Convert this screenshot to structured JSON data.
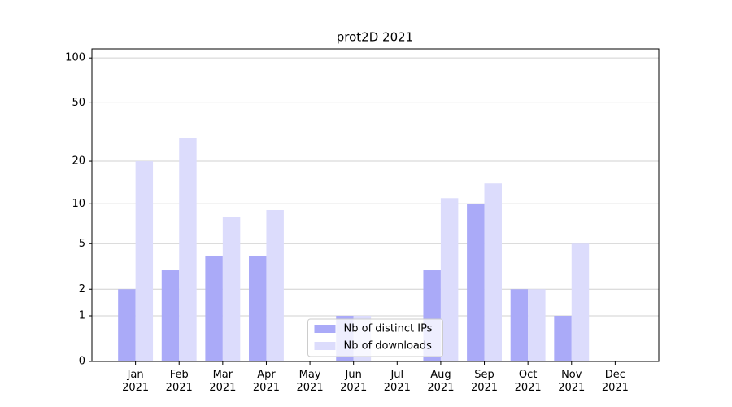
{
  "chart_data": {
    "type": "bar",
    "title": "prot2D 2021",
    "scale": "log1p",
    "categories": [
      "Jan\n2021",
      "Feb\n2021",
      "Mar\n2021",
      "Apr\n2021",
      "May\n2021",
      "Jun\n2021",
      "Jul\n2021",
      "Aug\n2021",
      "Sep\n2021",
      "Oct\n2021",
      "Nov\n2021",
      "Dec\n2021"
    ],
    "series": [
      {
        "name": "Nb of distinct IPs",
        "color": "#aaaaf8",
        "values": [
          2,
          3,
          4,
          4,
          0,
          1,
          0,
          3,
          10,
          2,
          1,
          0
        ]
      },
      {
        "name": "Nb of downloads",
        "color": "#dcdcfc",
        "values": [
          20,
          29,
          8,
          9,
          0,
          1,
          0,
          11,
          14,
          2,
          5,
          0
        ]
      }
    ],
    "ylim": [
      0,
      115
    ],
    "yticks": [
      0,
      1,
      2,
      5,
      10,
      20,
      50,
      100
    ],
    "grid": true,
    "legend": "lower center"
  }
}
